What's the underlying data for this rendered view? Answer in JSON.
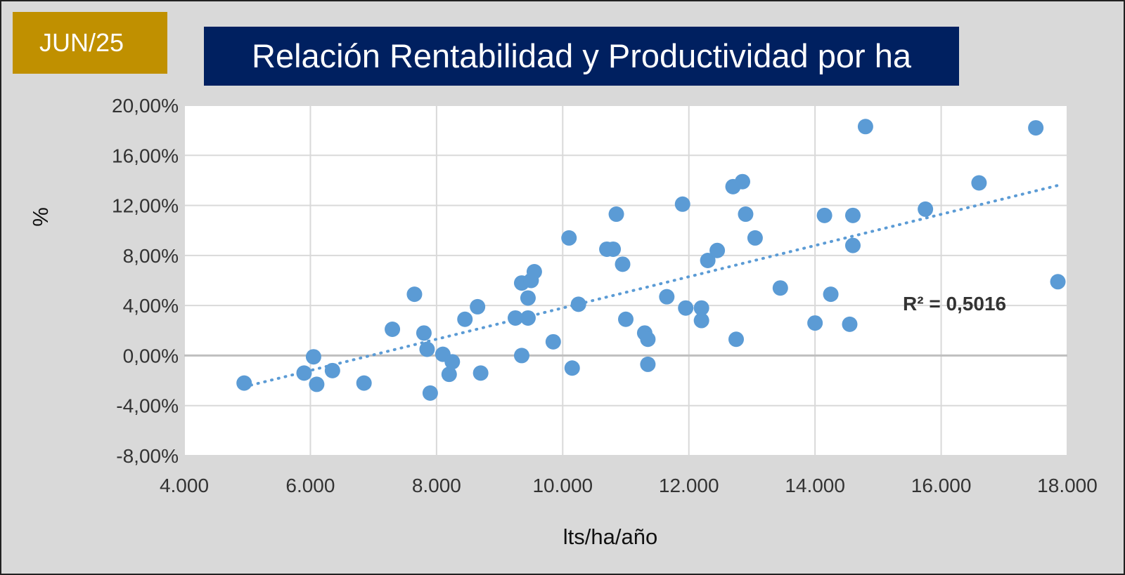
{
  "badge": {
    "label": "JUN/25",
    "color": "#c09000"
  },
  "title": {
    "text": "Relación Rentabilidad y Productividad por ha",
    "color": "#002060"
  },
  "chart_data": {
    "type": "scatter",
    "title": "Relación Rentabilidad y Productividad por ha",
    "xlabel": "lts/ha/año",
    "ylabel": "%",
    "xlim": [
      4000,
      18000
    ],
    "ylim": [
      -8,
      20
    ],
    "xticks": [
      4000,
      6000,
      8000,
      10000,
      12000,
      14000,
      16000,
      18000
    ],
    "xtick_labels": [
      "4.000",
      "6.000",
      "8.000",
      "10.000",
      "12.000",
      "14.000",
      "16.000",
      "18.000"
    ],
    "yticks": [
      -8,
      -4,
      0,
      4,
      8,
      12,
      16,
      20
    ],
    "ytick_labels": [
      "-8,00%",
      "-4,00%",
      "0,00%",
      "4,00%",
      "8,00%",
      "12,00%",
      "16,00%",
      "20,00%"
    ],
    "grid": true,
    "marker_color": "#5b9bd5",
    "points": [
      {
        "x": 4950,
        "y": -2.2
      },
      {
        "x": 5900,
        "y": -1.4
      },
      {
        "x": 6050,
        "y": -0.1
      },
      {
        "x": 6100,
        "y": -2.3
      },
      {
        "x": 6350,
        "y": -1.2
      },
      {
        "x": 6850,
        "y": -2.2
      },
      {
        "x": 7300,
        "y": 2.1
      },
      {
        "x": 7650,
        "y": 4.9
      },
      {
        "x": 7800,
        "y": 1.8
      },
      {
        "x": 7850,
        "y": 0.5
      },
      {
        "x": 7900,
        "y": -3.0
      },
      {
        "x": 8100,
        "y": 0.1
      },
      {
        "x": 8200,
        "y": -1.5
      },
      {
        "x": 8250,
        "y": -0.5
      },
      {
        "x": 8450,
        "y": 2.9
      },
      {
        "x": 8650,
        "y": 3.9
      },
      {
        "x": 8700,
        "y": -1.4
      },
      {
        "x": 9250,
        "y": 3.0
      },
      {
        "x": 9350,
        "y": 5.8
      },
      {
        "x": 9350,
        "y": 0.0
      },
      {
        "x": 9450,
        "y": 4.6
      },
      {
        "x": 9450,
        "y": 3.0
      },
      {
        "x": 9500,
        "y": 6.0
      },
      {
        "x": 9550,
        "y": 6.7
      },
      {
        "x": 9850,
        "y": 1.1
      },
      {
        "x": 10100,
        "y": 9.4
      },
      {
        "x": 10150,
        "y": -1.0
      },
      {
        "x": 10250,
        "y": 4.1
      },
      {
        "x": 10700,
        "y": 8.5
      },
      {
        "x": 10800,
        "y": 8.5
      },
      {
        "x": 10850,
        "y": 11.3
      },
      {
        "x": 10950,
        "y": 7.3
      },
      {
        "x": 11000,
        "y": 2.9
      },
      {
        "x": 11300,
        "y": 1.8
      },
      {
        "x": 11350,
        "y": 1.3
      },
      {
        "x": 11350,
        "y": -0.7
      },
      {
        "x": 11650,
        "y": 4.7
      },
      {
        "x": 11900,
        "y": 12.1
      },
      {
        "x": 11950,
        "y": 3.8
      },
      {
        "x": 12200,
        "y": 3.8
      },
      {
        "x": 12200,
        "y": 2.8
      },
      {
        "x": 12300,
        "y": 7.6
      },
      {
        "x": 12450,
        "y": 8.4
      },
      {
        "x": 12700,
        "y": 13.5
      },
      {
        "x": 12750,
        "y": 1.3
      },
      {
        "x": 12850,
        "y": 13.9
      },
      {
        "x": 12900,
        "y": 11.3
      },
      {
        "x": 13050,
        "y": 9.4
      },
      {
        "x": 13450,
        "y": 5.4
      },
      {
        "x": 14000,
        "y": 2.6
      },
      {
        "x": 14150,
        "y": 11.2
      },
      {
        "x": 14250,
        "y": 4.9
      },
      {
        "x": 14550,
        "y": 2.5
      },
      {
        "x": 14600,
        "y": 11.2
      },
      {
        "x": 14600,
        "y": 8.8
      },
      {
        "x": 14800,
        "y": 18.3
      },
      {
        "x": 15750,
        "y": 11.7
      },
      {
        "x": 16600,
        "y": 13.8
      },
      {
        "x": 17500,
        "y": 18.2
      },
      {
        "x": 17850,
        "y": 5.9
      }
    ],
    "trendline": {
      "type": "linear",
      "x": [
        4950,
        17850
      ],
      "y": [
        -2.5,
        13.6
      ],
      "color": "#5b9bd5",
      "style": "dotted",
      "label": "R² = 0,5016"
    }
  }
}
